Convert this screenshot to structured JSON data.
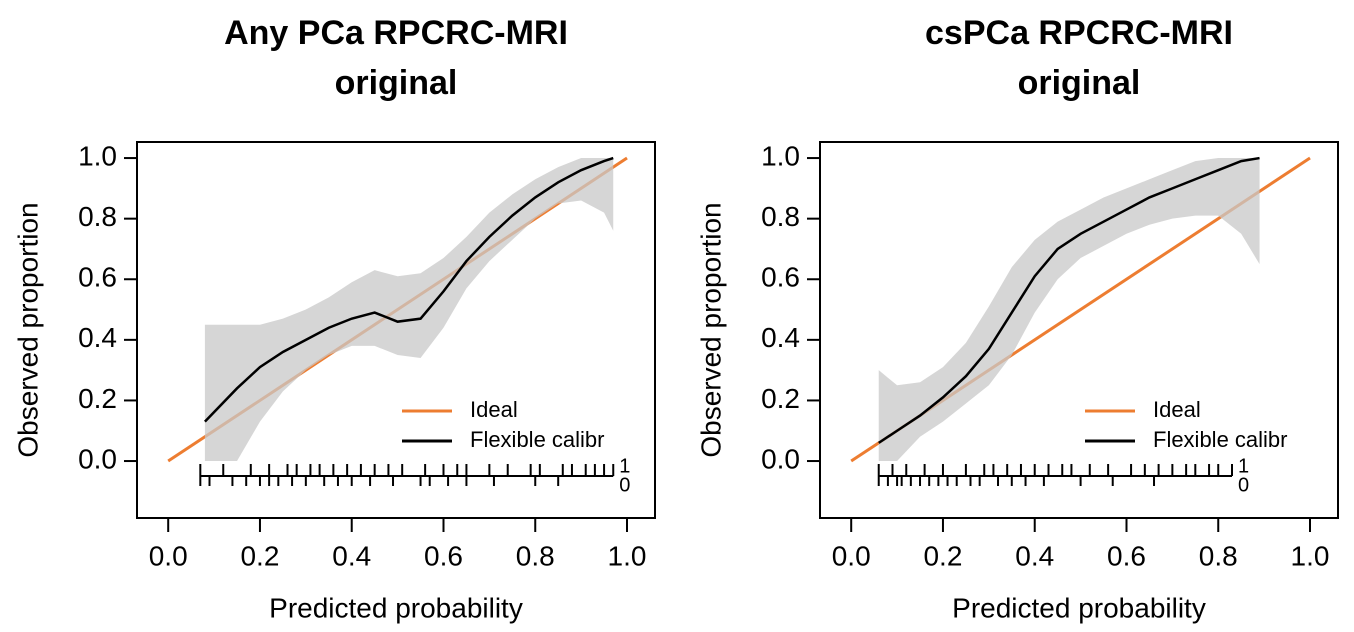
{
  "chart_data": [
    {
      "type": "calibration",
      "title": [
        "Any PCa RPCRC-MRI",
        "original"
      ],
      "x_label": "Predicted probability",
      "y_label": "Observed proportion",
      "xlim": [
        -0.068,
        1.061
      ],
      "ylim": [
        -0.188,
        1.053
      ],
      "xticks": [
        {
          "value": 0,
          "label": "0.0"
        },
        {
          "value": 0.2,
          "label": "0.2"
        },
        {
          "value": 0.4,
          "label": "0.4"
        },
        {
          "value": 0.6,
          "label": "0.6"
        },
        {
          "value": 0.8,
          "label": "0.8"
        },
        {
          "value": 1,
          "label": "1.0"
        }
      ],
      "yticks": [
        {
          "value": 0,
          "label": "0.0"
        },
        {
          "value": 0.2,
          "label": "0.2"
        },
        {
          "value": 0.4,
          "label": "0.4"
        },
        {
          "value": 0.6,
          "label": "0.6"
        },
        {
          "value": 0.8,
          "label": "0.8"
        },
        {
          "value": 1,
          "label": "1.0"
        }
      ],
      "series": [
        {
          "name": "Ideal",
          "color": "#ed7d31",
          "x": [
            0,
            1
          ],
          "values": [
            0,
            1
          ]
        },
        {
          "name": "Flexible calibr",
          "color": "#000000",
          "x": [
            0.08,
            0.15,
            0.2,
            0.25,
            0.3,
            0.35,
            0.4,
            0.45,
            0.5,
            0.55,
            0.6,
            0.65,
            0.7,
            0.75,
            0.8,
            0.85,
            0.9,
            0.95,
            0.97
          ],
          "values": [
            0.13,
            0.24,
            0.31,
            0.36,
            0.4,
            0.44,
            0.47,
            0.49,
            0.46,
            0.47,
            0.56,
            0.66,
            0.74,
            0.81,
            0.87,
            0.92,
            0.96,
            0.99,
            1.0
          ]
        }
      ],
      "band": {
        "color": "#c8c8c8",
        "x": [
          0.08,
          0.15,
          0.2,
          0.25,
          0.3,
          0.35,
          0.4,
          0.45,
          0.5,
          0.55,
          0.6,
          0.65,
          0.7,
          0.75,
          0.8,
          0.85,
          0.9,
          0.95,
          0.97
        ],
        "upper": [
          0.45,
          0.45,
          0.45,
          0.47,
          0.5,
          0.54,
          0.59,
          0.63,
          0.61,
          0.62,
          0.67,
          0.74,
          0.82,
          0.88,
          0.93,
          0.97,
          1.0,
          1.0,
          1.0
        ],
        "lower": [
          0.0,
          0.0,
          0.13,
          0.23,
          0.3,
          0.35,
          0.38,
          0.38,
          0.35,
          0.34,
          0.44,
          0.57,
          0.66,
          0.73,
          0.8,
          0.85,
          0.86,
          0.82,
          0.76
        ]
      },
      "rug_labels": [
        "1",
        "0"
      ],
      "rug_events": [
        0.07,
        0.12,
        0.18,
        0.22,
        0.26,
        0.28,
        0.31,
        0.33,
        0.36,
        0.39,
        0.42,
        0.45,
        0.48,
        0.51,
        0.56,
        0.6,
        0.63,
        0.65,
        0.7,
        0.74,
        0.79,
        0.81,
        0.86,
        0.88,
        0.91,
        0.93,
        0.95,
        0.97
      ],
      "rug_nonevents": [
        0.07,
        0.09,
        0.14,
        0.17,
        0.2,
        0.22,
        0.24,
        0.27,
        0.3,
        0.34,
        0.37,
        0.4,
        0.44,
        0.49,
        0.55,
        0.57,
        0.61,
        0.65,
        0.71,
        0.8,
        0.85
      ]
    },
    {
      "type": "calibration",
      "title": [
        "csPCa RPCRC-MRI",
        "original"
      ],
      "x_label": "Predicted probability",
      "y_label": "Observed proportion",
      "xlim": [
        -0.068,
        1.061
      ],
      "ylim": [
        -0.188,
        1.053
      ],
      "xticks": [
        {
          "value": 0,
          "label": "0.0"
        },
        {
          "value": 0.2,
          "label": "0.2"
        },
        {
          "value": 0.4,
          "label": "0.4"
        },
        {
          "value": 0.6,
          "label": "0.6"
        },
        {
          "value": 0.8,
          "label": "0.8"
        },
        {
          "value": 1,
          "label": "1.0"
        }
      ],
      "yticks": [
        {
          "value": 0,
          "label": "0.0"
        },
        {
          "value": 0.2,
          "label": "0.2"
        },
        {
          "value": 0.4,
          "label": "0.4"
        },
        {
          "value": 0.6,
          "label": "0.6"
        },
        {
          "value": 0.8,
          "label": "0.8"
        },
        {
          "value": 1,
          "label": "1.0"
        }
      ],
      "series": [
        {
          "name": "Ideal",
          "color": "#ed7d31",
          "x": [
            0,
            1
          ],
          "values": [
            0,
            1
          ]
        },
        {
          "name": "Flexible calibr",
          "color": "#000000",
          "x": [
            0.06,
            0.1,
            0.15,
            0.2,
            0.25,
            0.3,
            0.35,
            0.4,
            0.45,
            0.5,
            0.55,
            0.6,
            0.65,
            0.7,
            0.75,
            0.8,
            0.85,
            0.89
          ],
          "values": [
            0.06,
            0.1,
            0.15,
            0.21,
            0.28,
            0.37,
            0.49,
            0.61,
            0.7,
            0.75,
            0.79,
            0.83,
            0.87,
            0.9,
            0.93,
            0.96,
            0.99,
            1.0
          ]
        }
      ],
      "band": {
        "color": "#c8c8c8",
        "x": [
          0.06,
          0.1,
          0.15,
          0.2,
          0.25,
          0.3,
          0.35,
          0.4,
          0.45,
          0.5,
          0.55,
          0.6,
          0.65,
          0.7,
          0.75,
          0.8,
          0.85,
          0.89
        ],
        "upper": [
          0.3,
          0.25,
          0.26,
          0.31,
          0.39,
          0.51,
          0.64,
          0.73,
          0.79,
          0.83,
          0.87,
          0.9,
          0.93,
          0.96,
          0.99,
          1.0,
          1.0,
          1.0
        ],
        "lower": [
          0.0,
          0.0,
          0.08,
          0.13,
          0.19,
          0.25,
          0.35,
          0.49,
          0.6,
          0.67,
          0.71,
          0.75,
          0.78,
          0.8,
          0.81,
          0.81,
          0.75,
          0.65
        ]
      },
      "rug_labels": [
        "1",
        "0"
      ],
      "rug_events": [
        0.06,
        0.09,
        0.12,
        0.16,
        0.2,
        0.25,
        0.29,
        0.31,
        0.34,
        0.37,
        0.4,
        0.43,
        0.46,
        0.48,
        0.52,
        0.56,
        0.61,
        0.64,
        0.67,
        0.7,
        0.73,
        0.75,
        0.78,
        0.8,
        0.83
      ],
      "rug_nonevents": [
        0.06,
        0.08,
        0.1,
        0.11,
        0.13,
        0.15,
        0.17,
        0.19,
        0.21,
        0.23,
        0.26,
        0.28,
        0.32,
        0.35,
        0.38,
        0.42,
        0.5,
        0.57,
        0.66
      ]
    }
  ]
}
